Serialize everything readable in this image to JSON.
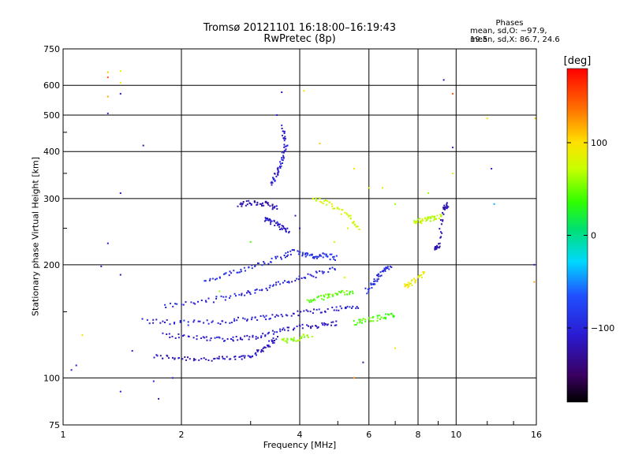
{
  "chart_data": {
    "type": "scatter",
    "title": "Tromsø 20121101 16:18:00–16:19:43",
    "subtitle": "RwPretec (8p)",
    "xlabel": "Frequency [MHz]",
    "ylabel": "Stationary phase Virtual Height [km]",
    "x_scale": "log",
    "y_scale": "log",
    "xlim": [
      1,
      16
    ],
    "ylim": [
      75,
      750
    ],
    "x_ticks": [
      1,
      2,
      4,
      6,
      8,
      10,
      16
    ],
    "x_tick_labels": [
      "1",
      "2",
      "4",
      "6",
      "8",
      "10",
      "16"
    ],
    "y_ticks": [
      75,
      100,
      200,
      300,
      400,
      500,
      600,
      750
    ],
    "y_tick_labels": [
      "75",
      "100",
      "200",
      "300",
      "400",
      "500",
      "600",
      "750"
    ],
    "grid": true,
    "phases_box": {
      "title": "Phases",
      "line_o": "mean, sd,O: −97.9, 19.5",
      "line_x": "mean, sd,X:  86.7, 24.6"
    },
    "colorbar": {
      "unit": "[deg]",
      "range": [
        -180,
        180
      ],
      "ticks": [
        100,
        0,
        -100
      ],
      "tick_labels": [
        "100",
        "0",
        "−100"
      ]
    },
    "traces": [
      {
        "name": "",
        "phase": -115,
        "points": [
          [
            1.7,
            114
          ],
          [
            2.0,
            113
          ],
          [
            2.4,
            112
          ],
          [
            2.8,
            113
          ],
          [
            3.1,
            116
          ],
          [
            3.3,
            122
          ],
          [
            3.5,
            128
          ]
        ]
      },
      {
        "name": "",
        "phase": -110,
        "points": [
          [
            1.8,
            130
          ],
          [
            2.2,
            128
          ],
          [
            2.6,
            127
          ],
          [
            3.0,
            128
          ],
          [
            3.4,
            132
          ],
          [
            3.9,
            136
          ],
          [
            4.5,
            138
          ],
          [
            5.0,
            140
          ]
        ]
      },
      {
        "name": "",
        "phase": -105,
        "points": [
          [
            1.6,
            142
          ],
          [
            2.0,
            140
          ],
          [
            2.5,
            141
          ],
          [
            3.0,
            144
          ],
          [
            3.5,
            146
          ],
          [
            4.2,
            150
          ],
          [
            5.0,
            153
          ],
          [
            5.7,
            155
          ]
        ]
      },
      {
        "name": "",
        "phase": -100,
        "points": [
          [
            1.8,
            155
          ],
          [
            2.3,
            160
          ],
          [
            2.8,
            166
          ],
          [
            3.2,
            172
          ],
          [
            3.7,
            180
          ],
          [
            4.3,
            188
          ],
          [
            5.0,
            196
          ]
        ]
      },
      {
        "name": "",
        "phase": -95,
        "points": [
          [
            2.3,
            180
          ],
          [
            2.7,
            190
          ],
          [
            3.1,
            200
          ],
          [
            3.6,
            210
          ],
          [
            4.0,
            220
          ]
        ]
      },
      {
        "name": "",
        "phase": -120,
        "points": [
          [
            2.8,
            290
          ],
          [
            3.0,
            292
          ],
          [
            3.3,
            290
          ],
          [
            3.5,
            282
          ]
        ]
      },
      {
        "name": "",
        "phase": -110,
        "points": [
          [
            3.25,
            265
          ],
          [
            3.4,
            260
          ],
          [
            3.6,
            252
          ],
          [
            3.75,
            245
          ]
        ]
      },
      {
        "name": "",
        "phase": -105,
        "points": [
          [
            3.4,
            330
          ],
          [
            3.5,
            350
          ],
          [
            3.6,
            380
          ],
          [
            3.7,
            420
          ],
          [
            3.6,
            470
          ]
        ]
      },
      {
        "name": "",
        "phase": 60,
        "points": [
          [
            3.6,
            125
          ],
          [
            3.9,
            127
          ],
          [
            4.3,
            130
          ]
        ]
      },
      {
        "name": "",
        "phase": 45,
        "points": [
          [
            4.2,
            160
          ],
          [
            4.6,
            164
          ],
          [
            5.0,
            168
          ],
          [
            5.5,
            170
          ]
        ]
      },
      {
        "name": "",
        "phase": 80,
        "points": [
          [
            4.3,
            300
          ],
          [
            4.8,
            290
          ],
          [
            5.3,
            270
          ],
          [
            5.7,
            250
          ]
        ]
      },
      {
        "name": "",
        "phase": -90,
        "points": [
          [
            4.0,
            215
          ],
          [
            4.3,
            210
          ],
          [
            4.6,
            212
          ],
          [
            5.0,
            208
          ]
        ]
      },
      {
        "name": "",
        "phase": 40,
        "points": [
          [
            5.5,
            140
          ],
          [
            6.0,
            143
          ],
          [
            6.5,
            145
          ],
          [
            7.0,
            148
          ]
        ]
      },
      {
        "name": "",
        "phase": -95,
        "points": [
          [
            5.9,
            170
          ],
          [
            6.2,
            180
          ],
          [
            6.5,
            190
          ],
          [
            6.8,
            200
          ]
        ]
      },
      {
        "name": "",
        "phase": 70,
        "points": [
          [
            7.8,
            260
          ],
          [
            8.2,
            262
          ],
          [
            8.7,
            265
          ],
          [
            9.2,
            270
          ]
        ]
      },
      {
        "name": "",
        "phase": -120,
        "points": [
          [
            8.8,
            220
          ],
          [
            9.0,
            222
          ],
          [
            9.3,
            280
          ],
          [
            9.5,
            290
          ]
        ]
      },
      {
        "name": "",
        "phase": 90,
        "points": [
          [
            7.4,
            175
          ],
          [
            7.8,
            180
          ],
          [
            8.3,
            190
          ]
        ]
      }
    ],
    "scatter_points": [
      [
        1.05,
        105,
        -100
      ],
      [
        1.08,
        108,
        -110
      ],
      [
        1.12,
        130,
        90
      ],
      [
        1.25,
        198,
        -110
      ],
      [
        1.3,
        650,
        110
      ],
      [
        1.3,
        630,
        150
      ],
      [
        1.3,
        560,
        120
      ],
      [
        1.3,
        505,
        -100
      ],
      [
        1.4,
        655,
        80
      ],
      [
        1.4,
        610,
        90
      ],
      [
        1.4,
        570,
        -120
      ],
      [
        1.4,
        310,
        -110
      ],
      [
        1.4,
        188,
        -120
      ],
      [
        1.4,
        92,
        -100
      ],
      [
        1.5,
        118,
        -110
      ],
      [
        1.6,
        415,
        -120
      ],
      [
        1.7,
        98,
        -100
      ],
      [
        1.75,
        88,
        -120
      ],
      [
        1.9,
        100,
        -110
      ],
      [
        1.3,
        228,
        -110
      ],
      [
        3.6,
        575,
        -110
      ],
      [
        3.5,
        500,
        -105
      ],
      [
        4.1,
        580,
        95
      ],
      [
        4.5,
        420,
        110
      ],
      [
        5.5,
        360,
        100
      ],
      [
        6.0,
        320,
        80
      ],
      [
        6.5,
        320,
        90
      ],
      [
        7.0,
        290,
        60
      ],
      [
        7.0,
        120,
        100
      ],
      [
        5.8,
        110,
        -120
      ],
      [
        5.5,
        100,
        130
      ],
      [
        9.3,
        620,
        -120
      ],
      [
        9.8,
        570,
        150
      ],
      [
        9.8,
        410,
        -100
      ],
      [
        12.0,
        490,
        100
      ],
      [
        12.3,
        360,
        -110
      ],
      [
        12.5,
        290,
        -40
      ],
      [
        15.9,
        490,
        110
      ],
      [
        15.8,
        200,
        -100
      ],
      [
        15.8,
        180,
        120
      ],
      [
        9.8,
        350,
        80
      ],
      [
        8.5,
        310,
        60
      ],
      [
        2.5,
        170,
        60
      ],
      [
        3.0,
        230,
        40
      ],
      [
        4.9,
        230,
        70
      ],
      [
        5.3,
        250,
        70
      ],
      [
        4.0,
        250,
        -110
      ],
      [
        3.9,
        270,
        -110
      ],
      [
        4.4,
        185,
        -100
      ],
      [
        5.2,
        185,
        90
      ]
    ]
  }
}
